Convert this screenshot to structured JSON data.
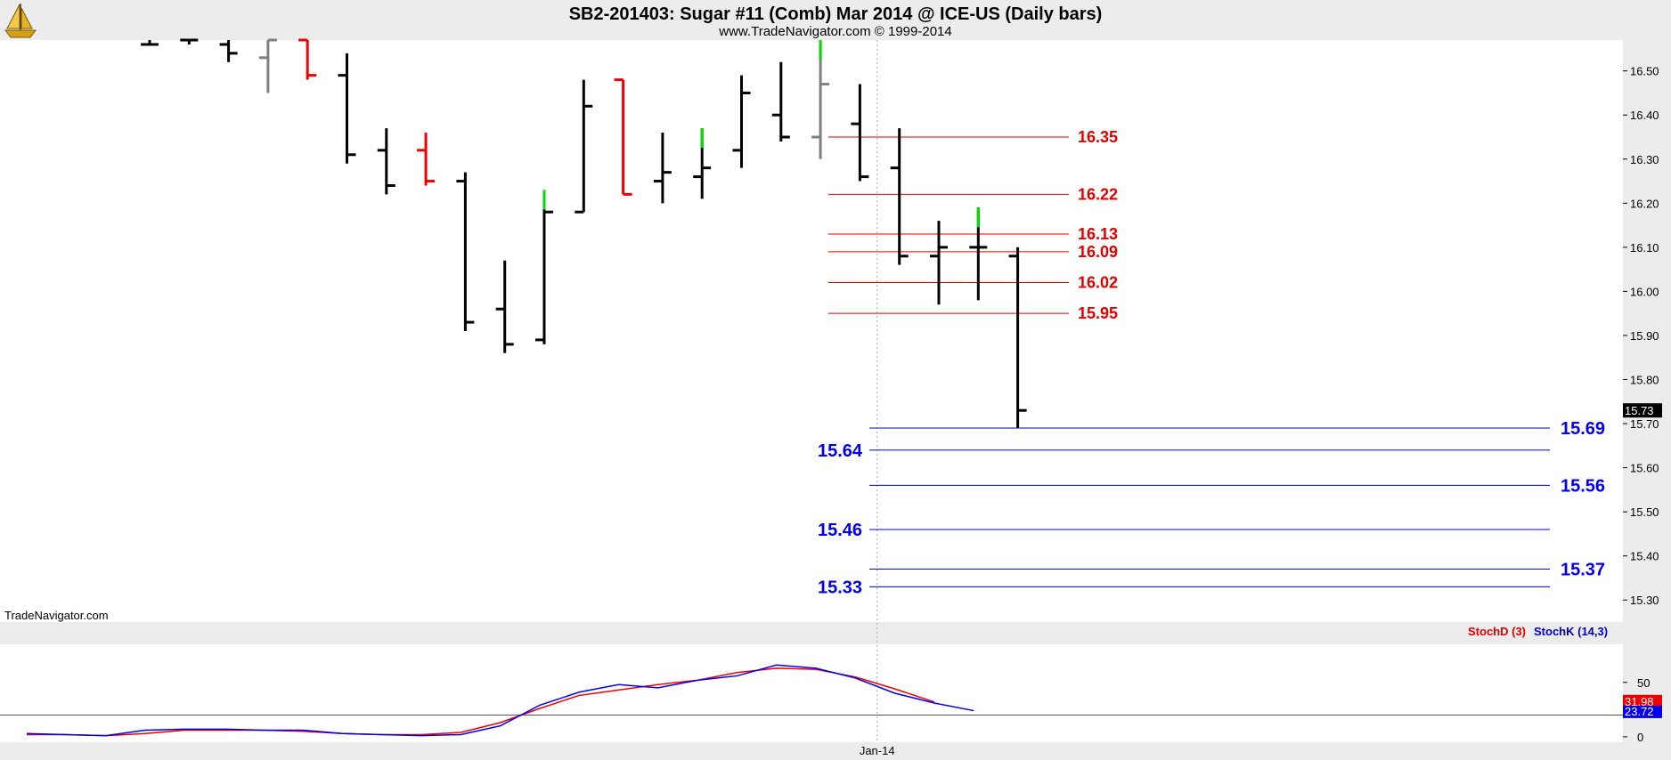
{
  "title": "SB2-201403:  Sugar #11 (Comb) Mar 2014 @ ICE-US  (Daily bars)",
  "subtitle": "www.TradeNavigator.com © 1999-2014",
  "watermark": "TradeNavigator.com",
  "logo_icon": "trading-ship-logo-icon",
  "chart_data": [
    {
      "type": "ohlc",
      "price_scale": "right",
      "ylim": [
        15.25,
        16.57
      ],
      "yticks": [
        15.3,
        15.4,
        15.5,
        15.6,
        15.7,
        15.8,
        15.9,
        16.0,
        16.1,
        16.2,
        16.3,
        16.4,
        16.5
      ],
      "last_price": "15.73",
      "x_date_label": "Jan-14",
      "x_date_label_index": 19,
      "colors": {
        "up": "#00dd00",
        "down": "#ee0000",
        "neutral": "#808080",
        "bar": "#000000"
      },
      "bars": [
        {
          "o": 16.56,
          "h": 16.57,
          "l": 16.56,
          "c": 16.56,
          "color": "bar"
        },
        {
          "o": 16.57,
          "h": 16.57,
          "l": 16.56,
          "c": 16.57,
          "color": "bar"
        },
        {
          "o": 16.56,
          "h": 16.58,
          "l": 16.52,
          "c": 16.54,
          "color": "bar"
        },
        {
          "o": 16.53,
          "h": 16.58,
          "l": 16.45,
          "c": 16.57,
          "color": "neutral"
        },
        {
          "o": 16.57,
          "h": 16.57,
          "l": 16.48,
          "c": 16.49,
          "color": "down"
        },
        {
          "o": 16.49,
          "h": 16.54,
          "l": 16.29,
          "c": 16.31,
          "color": "bar"
        },
        {
          "o": 16.32,
          "h": 16.37,
          "l": 16.22,
          "c": 16.24,
          "color": "bar"
        },
        {
          "o": 16.32,
          "h": 16.36,
          "l": 16.24,
          "c": 16.25,
          "color": "down"
        },
        {
          "o": 16.25,
          "h": 16.27,
          "l": 15.91,
          "c": 15.93,
          "color": "bar"
        },
        {
          "o": 15.96,
          "h": 16.07,
          "l": 15.86,
          "c": 15.88,
          "color": "bar"
        },
        {
          "o": 15.89,
          "h": 16.23,
          "l": 15.88,
          "c": 16.18,
          "color": "bar"
        },
        {
          "o": 16.18,
          "h": 16.48,
          "l": 16.18,
          "c": 16.42,
          "color": "bar"
        },
        {
          "o": 16.48,
          "h": 16.48,
          "l": 16.22,
          "c": 16.22,
          "color": "down"
        },
        {
          "o": 16.25,
          "h": 16.36,
          "l": 16.2,
          "c": 16.27,
          "color": "bar"
        },
        {
          "o": 16.26,
          "h": 16.37,
          "l": 16.21,
          "c": 16.28,
          "color": "bar"
        },
        {
          "o": 16.32,
          "h": 16.49,
          "l": 16.28,
          "c": 16.45,
          "color": "bar"
        },
        {
          "o": 16.4,
          "h": 16.52,
          "l": 16.34,
          "c": 16.35,
          "color": "bar"
        },
        {
          "o": 16.35,
          "h": 16.57,
          "l": 16.3,
          "c": 16.47,
          "color": "neutral"
        },
        {
          "o": 16.38,
          "h": 16.47,
          "l": 16.25,
          "c": 16.26,
          "color": "bar"
        },
        {
          "o": 16.28,
          "h": 16.37,
          "l": 16.06,
          "c": 16.08,
          "color": "bar"
        },
        {
          "o": 16.08,
          "h": 16.16,
          "l": 15.97,
          "c": 16.1,
          "color": "bar"
        },
        {
          "o": 16.1,
          "h": 16.19,
          "l": 15.98,
          "c": 16.1,
          "color": "bar"
        },
        {
          "o": 16.08,
          "h": 16.1,
          "l": 15.69,
          "c": 15.73,
          "color": "bar"
        }
      ],
      "high_marks": [
        {
          "index": 10,
          "value": 15.88,
          "color": "up"
        },
        {
          "index": 14,
          "value": 16.28,
          "color": "up"
        },
        {
          "index": 17,
          "value": 16.47,
          "color": "up"
        },
        {
          "index": 21,
          "value": 16.1,
          "color": "up"
        }
      ],
      "resistance_levels": [
        {
          "value": 16.35,
          "label": "16.35"
        },
        {
          "value": 16.22,
          "label": "16.22"
        },
        {
          "value": 16.13,
          "label": "16.13"
        },
        {
          "value": 16.09,
          "label": "16.09"
        },
        {
          "value": 16.02,
          "label": "16.02"
        },
        {
          "value": 15.95,
          "label": "15.95"
        }
      ],
      "support_levels": [
        {
          "value": 15.69,
          "label": "15.69",
          "side": "right"
        },
        {
          "value": 15.64,
          "label": "15.64",
          "side": "left"
        },
        {
          "value": 15.56,
          "label": "15.56",
          "side": "right"
        },
        {
          "value": 15.46,
          "label": "15.46",
          "side": "left"
        },
        {
          "value": 15.37,
          "label": "15.37",
          "side": "right"
        },
        {
          "value": 15.33,
          "label": "15.33",
          "side": "left"
        }
      ]
    },
    {
      "type": "line",
      "ylim": [
        -5,
        85
      ],
      "yticks": [
        0,
        50
      ],
      "reference_line": 20,
      "legend": [
        {
          "name": "StochD (3)",
          "color": "#ee0000"
        },
        {
          "name": "StochK (14,3)",
          "color": "#0000ee"
        }
      ],
      "last_values": {
        "stoch_d": "31.98",
        "stoch_k": "23.72"
      },
      "series": [
        {
          "name": "StochD (3)",
          "color": "#ee0000",
          "values": [
            2,
            2,
            1,
            3,
            6,
            6,
            6,
            5,
            3,
            2,
            2,
            4,
            13,
            26,
            38,
            43,
            48,
            52,
            59,
            63,
            62,
            55,
            44,
            32
          ]
        },
        {
          "name": "StochK (14,3)",
          "color": "#0000ee",
          "values": [
            3,
            2,
            1,
            6,
            7,
            7,
            6,
            6,
            3,
            2,
            1,
            2,
            10,
            29,
            41,
            48,
            45,
            52,
            56,
            66,
            63,
            54,
            40,
            31,
            24
          ]
        }
      ]
    }
  ]
}
